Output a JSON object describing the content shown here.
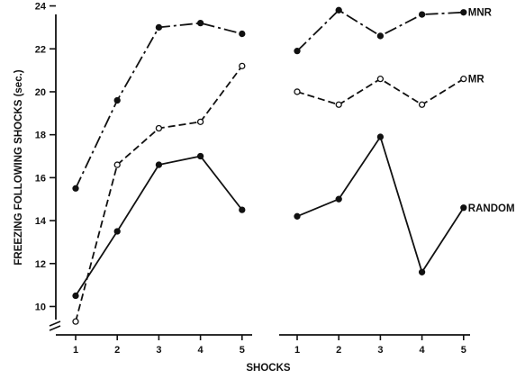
{
  "chart_data": {
    "type": "line",
    "ylabel": "FREEZING FOLLOWING SHOCKS (sec.)",
    "xlabel": "SHOCKS",
    "ylim": [
      9,
      24
    ],
    "y_ticks": [
      10,
      12,
      14,
      16,
      18,
      20,
      22,
      24
    ],
    "axis_break": true,
    "grid": false,
    "panels": [
      {
        "x": [
          1,
          2,
          3,
          4,
          5
        ],
        "series": [
          {
            "name": "MNR",
            "style": "dash-dot",
            "marker": "filled",
            "values": [
              15.5,
              19.6,
              23.0,
              23.2,
              22.7
            ]
          },
          {
            "name": "MR",
            "style": "dashed",
            "marker": "open",
            "values": [
              9.3,
              16.6,
              18.3,
              18.6,
              21.2
            ]
          },
          {
            "name": "RANDOM",
            "style": "solid",
            "marker": "filled",
            "values": [
              10.5,
              13.5,
              16.6,
              17.0,
              14.5
            ]
          }
        ]
      },
      {
        "x": [
          1,
          2,
          3,
          4,
          5
        ],
        "series": [
          {
            "name": "MNR",
            "style": "dash-dot",
            "marker": "filled",
            "values": [
              21.9,
              23.8,
              22.6,
              23.6,
              23.7
            ]
          },
          {
            "name": "MR",
            "style": "dashed",
            "marker": "open",
            "values": [
              20.0,
              19.4,
              20.6,
              19.4,
              20.6
            ]
          },
          {
            "name": "RANDOM",
            "style": "solid",
            "marker": "filled",
            "values": [
              14.2,
              15.0,
              17.9,
              11.6,
              14.6
            ]
          }
        ]
      }
    ]
  }
}
